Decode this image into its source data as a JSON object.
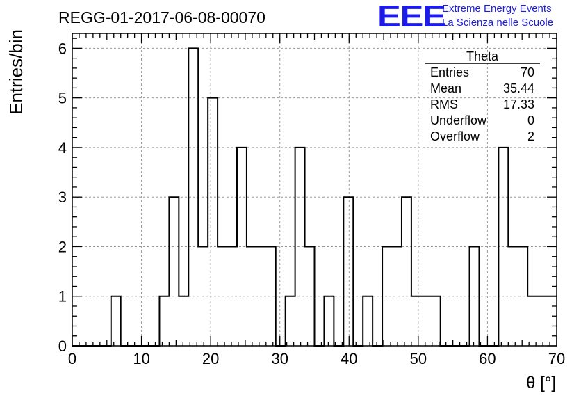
{
  "title": "REGG-01-2017-06-08-00070",
  "logo": {
    "text": "EEE",
    "line1": "Extreme Energy Events",
    "line2": "La Scienza nelle Scuole",
    "color": "#1c1ce6"
  },
  "stats": {
    "name": "Theta",
    "rows": [
      {
        "label": "Entries",
        "value": "70"
      },
      {
        "label": "Mean",
        "value": "35.44"
      },
      {
        "label": "RMS",
        "value": "17.33"
      },
      {
        "label": "Underflow",
        "value": "0"
      },
      {
        "label": "Overflow",
        "value": "2"
      }
    ]
  },
  "chart_data": {
    "type": "bar",
    "histogram": true,
    "title": "REGG-01-2017-06-08-00070",
    "xlabel": "θ [°]",
    "ylabel": "Entries/bin",
    "xlim": [
      0,
      70
    ],
    "ylim": [
      0,
      6.3
    ],
    "grid": true,
    "bin_width": 1.4,
    "x": [
      0.7,
      2.1,
      3.5,
      4.9,
      6.3,
      7.7,
      9.1,
      10.5,
      11.9,
      13.3,
      14.7,
      16.1,
      17.5,
      18.9,
      20.3,
      21.7,
      23.1,
      24.5,
      25.9,
      27.3,
      28.7,
      30.1,
      31.5,
      32.9,
      34.3,
      35.7,
      37.1,
      38.5,
      39.9,
      41.3,
      42.7,
      44.1,
      45.5,
      46.9,
      48.3,
      49.7,
      51.1,
      52.5,
      53.9,
      55.3,
      56.7,
      58.1,
      59.5,
      60.9,
      62.3,
      63.7,
      65.1,
      66.5,
      67.9,
      69.3
    ],
    "values": [
      0,
      0,
      0,
      0,
      1,
      0,
      0,
      0,
      0,
      1,
      3,
      1,
      6,
      2,
      5,
      2,
      2,
      4,
      2,
      2,
      2,
      0,
      1,
      4,
      2,
      0,
      1,
      0,
      3,
      0,
      1,
      0,
      2,
      2,
      3,
      1,
      1,
      1,
      0,
      0,
      0,
      2,
      0,
      0,
      4,
      2,
      2,
      1,
      1,
      1
    ],
    "xticks": [
      "0",
      "10",
      "20",
      "30",
      "40",
      "50",
      "60",
      "70"
    ],
    "yticks": [
      "0",
      "1",
      "2",
      "3",
      "4",
      "5",
      "6"
    ]
  }
}
